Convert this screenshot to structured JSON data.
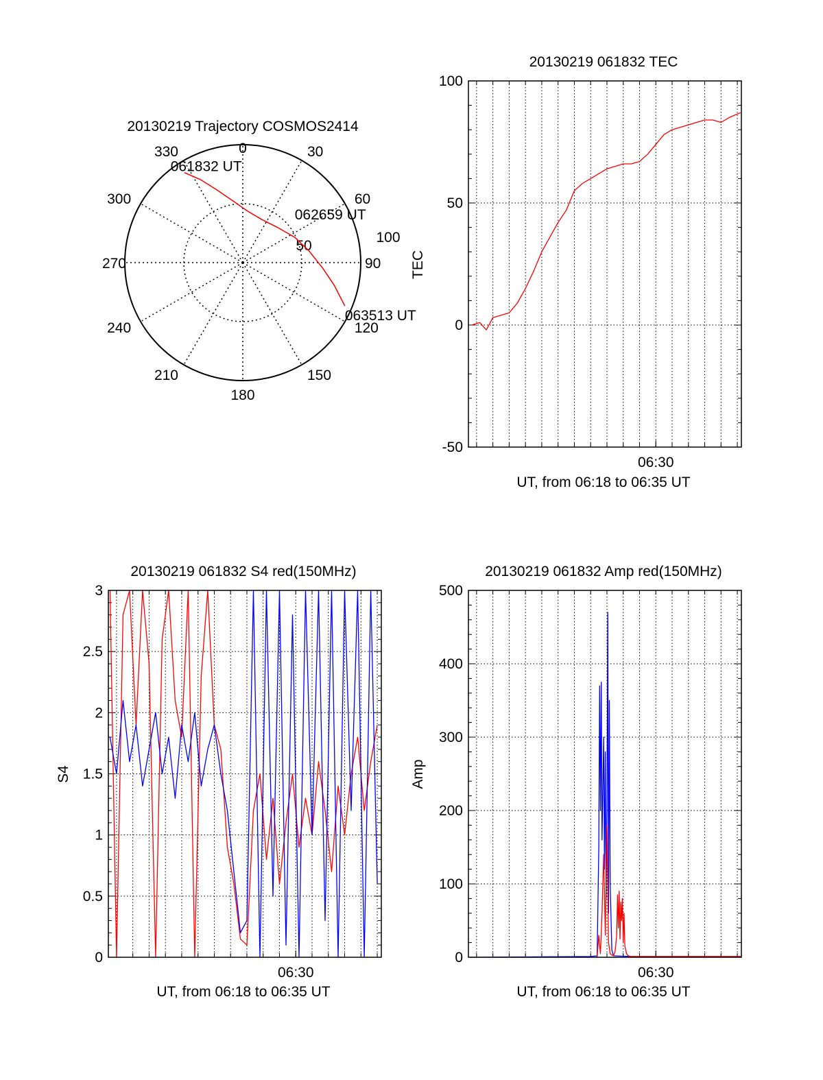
{
  "colors": {
    "red": "#ff0000",
    "blue": "#0000ff",
    "axis": "#000000",
    "grid": "#000000",
    "background": "#ffffff"
  },
  "chart_data": [
    {
      "id": "trajectory",
      "type": "polar",
      "title": "20130219 Trajectory COSMOS2414",
      "angle_labels": [
        "0",
        "30",
        "60",
        "90",
        "120",
        "150",
        "180",
        "210",
        "240",
        "270",
        "300",
        "330"
      ],
      "radius_labels": [
        "50",
        "100"
      ],
      "rlim": [
        0,
        100
      ],
      "grid": true,
      "series": [
        {
          "color": "red",
          "points": [
            {
              "az": 327,
              "r": 91
            },
            {
              "az": 333,
              "r": 79
            },
            {
              "az": 340,
              "r": 66
            },
            {
              "az": 351,
              "r": 53
            },
            {
              "az": 5,
              "r": 44
            },
            {
              "az": 23,
              "r": 40
            },
            {
              "az": 45,
              "r": 42
            },
            {
              "az": 64,
              "r": 49
            },
            {
              "az": 80,
              "r": 57
            },
            {
              "az": 94,
              "r": 68
            },
            {
              "az": 104,
              "r": 80
            },
            {
              "az": 113,
              "r": 94
            }
          ]
        }
      ],
      "annotations": [
        {
          "text": "061832 UT",
          "az": 327,
          "r": 91
        },
        {
          "text": "062659 UT",
          "az": 64,
          "r": 49
        },
        {
          "text": "063513 UT",
          "az": 113,
          "r": 94
        }
      ]
    },
    {
      "id": "tec",
      "type": "line",
      "title": "20130219 061832 TEC",
      "xlabel": "UT, from 06:18 to 06:35 UT",
      "ylabel": "TEC",
      "xlim_min": [
        18.5,
        35.25
      ],
      "ylim": [
        -50,
        100
      ],
      "yticks": [
        "-50",
        "0",
        "50",
        "100"
      ],
      "xticks": [
        {
          "min": 30,
          "label": "06:30"
        }
      ],
      "grid": true,
      "series": [
        {
          "color": "red",
          "x": [
            18.7,
            19.2,
            19.6,
            20.0,
            20.5,
            21.0,
            21.5,
            22.0,
            22.5,
            23.0,
            23.5,
            24.0,
            24.5,
            25.0,
            25.5,
            26.0,
            26.5,
            27.0,
            27.5,
            28.0,
            28.5,
            29.0,
            29.5,
            30.0,
            30.5,
            31.0,
            31.5,
            32.0,
            32.5,
            33.0,
            33.5,
            34.0,
            34.5,
            35.2
          ],
          "y": [
            0,
            1,
            -2,
            3,
            4,
            5,
            9,
            15,
            22,
            30,
            36,
            42,
            47,
            55,
            58,
            60,
            62,
            64,
            65,
            66,
            66,
            67,
            70,
            74,
            78,
            80,
            81,
            82,
            83,
            84,
            84,
            83,
            85,
            87
          ]
        }
      ]
    },
    {
      "id": "s4",
      "type": "line",
      "title": "20130219 061832 S4 red(150MHz)",
      "xlabel": "UT, from 06:18 to 06:35 UT",
      "ylabel": "S4",
      "xlim_min": [
        18.5,
        35.25
      ],
      "ylim": [
        0,
        3
      ],
      "yticks": [
        "0",
        "0.5",
        "1",
        "1.5",
        "2",
        "2.5",
        "3"
      ],
      "xticks": [
        {
          "min": 30,
          "label": "06:30"
        }
      ],
      "grid": true,
      "series": [
        {
          "color": "red",
          "x": [
            18.6,
            19.0,
            19.4,
            19.8,
            20.2,
            20.6,
            21.0,
            21.4,
            21.8,
            22.2,
            22.6,
            23.0,
            23.4,
            23.8,
            24.2,
            24.6,
            25.0,
            25.4,
            25.8,
            26.2,
            26.6,
            27.0,
            27.4,
            27.8,
            28.2,
            28.6,
            29.0,
            29.4,
            29.8,
            30.2,
            30.6,
            31.0,
            31.4,
            31.8,
            32.2,
            32.6,
            33.0,
            33.4,
            33.8,
            34.2,
            34.6,
            35.0
          ],
          "y": [
            3.0,
            0.0,
            2.8,
            3.0,
            1.9,
            3.0,
            2.4,
            0.0,
            2.6,
            3.0,
            2.1,
            1.8,
            3.0,
            0.0,
            2.3,
            3.0,
            1.9,
            1.7,
            0.9,
            0.6,
            0.15,
            0.1,
            1.2,
            1.5,
            0.8,
            1.3,
            0.6,
            1.1,
            1.5,
            0.9,
            1.3,
            1.0,
            1.6,
            1.2,
            0.7,
            1.4,
            1.0,
            1.5,
            1.8,
            1.2,
            1.6,
            1.9
          ]
        },
        {
          "color": "blue",
          "x": [
            18.6,
            19.0,
            19.4,
            19.8,
            20.2,
            20.6,
            21.0,
            21.4,
            21.8,
            22.2,
            22.6,
            23.0,
            23.4,
            23.8,
            24.2,
            24.6,
            25.0,
            25.4,
            25.8,
            26.2,
            26.6,
            27.0,
            27.4,
            27.8,
            28.2,
            28.6,
            29.0,
            29.4,
            29.8,
            30.2,
            30.6,
            31.0,
            31.4,
            31.8,
            32.2,
            32.6,
            33.0,
            33.4,
            33.8,
            34.2,
            34.6,
            35.0
          ],
          "y": [
            1.8,
            1.5,
            2.1,
            1.6,
            1.9,
            1.4,
            1.7,
            2.0,
            1.5,
            1.8,
            1.3,
            1.9,
            1.6,
            2.0,
            1.4,
            1.7,
            1.9,
            1.5,
            1.2,
            0.7,
            0.2,
            0.3,
            3.0,
            0.0,
            3.0,
            0.5,
            3.0,
            0.1,
            2.8,
            0.0,
            3.0,
            1.0,
            3.0,
            0.3,
            3.0,
            0.0,
            3.0,
            1.2,
            3.0,
            0.0,
            3.0,
            0.6
          ]
        }
      ]
    },
    {
      "id": "amp",
      "type": "line",
      "title": "20130219 061832 Amp red(150MHz)",
      "xlabel": "UT, from 06:18 to 06:35 UT",
      "ylabel": "Amp",
      "xlim_min": [
        18.5,
        35.25
      ],
      "ylim": [
        0,
        500
      ],
      "yticks": [
        "0",
        "100",
        "200",
        "300",
        "400",
        "500"
      ],
      "xticks": [
        {
          "min": 30,
          "label": "06:30"
        }
      ],
      "grid": true,
      "series": [
        {
          "color": "blue",
          "x": [
            18.6,
            26.0,
            26.4,
            26.5,
            26.55,
            26.6,
            26.65,
            26.7,
            26.8,
            26.85,
            26.9,
            26.95,
            27.0,
            27.05,
            27.1,
            27.15,
            27.2,
            27.3,
            27.4,
            28.5,
            32.0,
            35.2
          ],
          "y": [
            0,
            1,
            2,
            150,
            370,
            200,
            375,
            160,
            300,
            120,
            280,
            80,
            200,
            470,
            60,
            350,
            100,
            10,
            2,
            1,
            1,
            1
          ]
        },
        {
          "color": "red",
          "x": [
            26.4,
            26.5,
            26.6,
            26.7,
            26.8,
            26.9,
            27.0,
            27.1,
            27.2,
            27.3,
            27.4,
            27.5,
            27.6,
            27.65,
            27.7,
            27.75,
            27.8,
            27.85,
            27.9,
            27.95,
            28.0,
            28.05,
            28.1,
            28.2,
            28.3,
            28.5,
            29.0,
            35.2
          ],
          "y": [
            0,
            30,
            5,
            60,
            140,
            30,
            180,
            20,
            5,
            3,
            2,
            8,
            30,
            85,
            40,
            90,
            25,
            75,
            50,
            80,
            20,
            60,
            15,
            5,
            2,
            1,
            1,
            1
          ]
        }
      ]
    }
  ]
}
